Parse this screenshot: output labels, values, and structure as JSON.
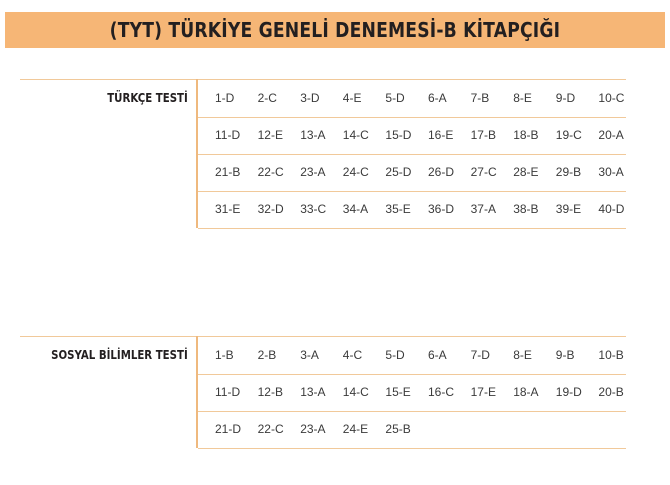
{
  "title": "(TYT) TÜRKİYE GENELİ DENEMESİ-B KİTAPÇIĞI",
  "colors": {
    "banner": "#f6b676",
    "rule": "#f1c99a"
  },
  "sections": [
    {
      "label": "TÜRKÇE TESTİ",
      "rows": [
        [
          "1-D",
          "2-C",
          "3-D",
          "4-E",
          "5-D",
          "6-A",
          "7-B",
          "8-E",
          "9-D",
          "10-C"
        ],
        [
          "11-D",
          "12-E",
          "13-A",
          "14-C",
          "15-D",
          "16-E",
          "17-B",
          "18-B",
          "19-C",
          "20-A"
        ],
        [
          "21-B",
          "22-C",
          "23-A",
          "24-C",
          "25-D",
          "26-D",
          "27-C",
          "28-E",
          "29-B",
          "30-A"
        ],
        [
          "31-E",
          "32-D",
          "33-C",
          "34-A",
          "35-E",
          "36-D",
          "37-A",
          "38-B",
          "39-E",
          "40-D"
        ]
      ]
    },
    {
      "label": "SOSYAL BİLİMLER TESTİ",
      "rows": [
        [
          "1-B",
          "2-B",
          "3-A",
          "4-C",
          "5-D",
          "6-A",
          "7-D",
          "8-E",
          "9-B",
          "10-B"
        ],
        [
          "11-D",
          "12-B",
          "13-A",
          "14-C",
          "15-E",
          "16-C",
          "17-E",
          "18-A",
          "19-D",
          "20-B"
        ],
        [
          "21-D",
          "22-C",
          "23-A",
          "24-E",
          "25-B"
        ]
      ]
    }
  ]
}
